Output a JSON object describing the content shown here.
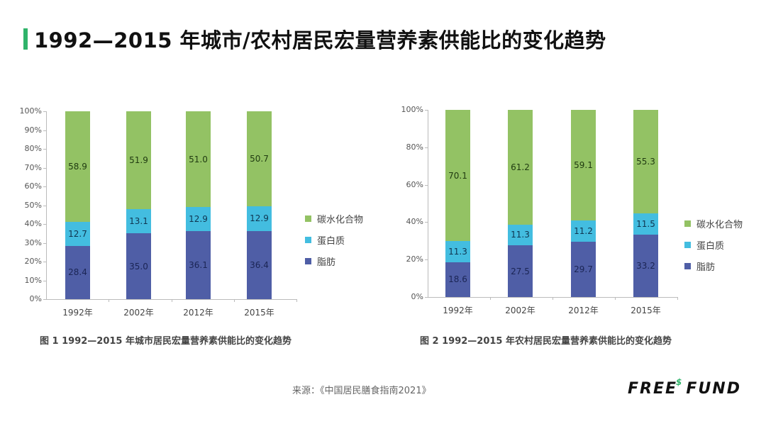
{
  "page": {
    "title": "1992—2015 年城市/农村居民宏量营养素供能比的变化趋势",
    "source": "来源：《中国居民膳食指南2021》",
    "logo": {
      "left": "FREE",
      "mark": "$",
      "right": "FUND"
    }
  },
  "colors": {
    "carbohydrate": "#93c264",
    "protein": "#43bde0",
    "fat": "#4f5ea6",
    "accent": "#2fb36a"
  },
  "chart_data": [
    {
      "type": "bar",
      "stacked": true,
      "title": "图 1   1992—2015 年城市居民宏量营养素供能比的变化趋势",
      "categories": [
        "1992年",
        "2002年",
        "2012年",
        "2015年"
      ],
      "series": [
        {
          "name": "脂肪",
          "values": [
            28.4,
            35.0,
            36.1,
            36.4
          ]
        },
        {
          "name": "蛋白质",
          "values": [
            12.7,
            13.1,
            12.9,
            12.9
          ]
        },
        {
          "name": "碳水化合物",
          "values": [
            58.9,
            51.9,
            51.0,
            50.7
          ]
        }
      ],
      "yticks": [
        "0%",
        "10%",
        "20%",
        "30%",
        "40%",
        "50%",
        "60%",
        "70%",
        "80%",
        "90%",
        "100%"
      ],
      "ylim": [
        0,
        100
      ],
      "legend": [
        "碳水化合物",
        "蛋白质",
        "脂肪"
      ],
      "legend_position": "right",
      "grid": false
    },
    {
      "type": "bar",
      "stacked": true,
      "title": "图 2   1992—2015 年农村居民宏量营养素供能比的变化趋势",
      "categories": [
        "1992年",
        "2002年",
        "2012年",
        "2015年"
      ],
      "series": [
        {
          "name": "脂肪",
          "values": [
            18.6,
            27.5,
            29.7,
            33.2
          ]
        },
        {
          "name": "蛋白质",
          "values": [
            11.3,
            11.3,
            11.2,
            11.5
          ]
        },
        {
          "name": "碳水化合物",
          "values": [
            70.1,
            61.2,
            59.1,
            55.3
          ]
        }
      ],
      "yticks": [
        "0%",
        "20%",
        "40%",
        "60%",
        "80%",
        "100%"
      ],
      "ylim": [
        0,
        100
      ],
      "legend": [
        "碳水化合物",
        "蛋白质",
        "脂肪"
      ],
      "legend_position": "right",
      "grid": false
    }
  ]
}
